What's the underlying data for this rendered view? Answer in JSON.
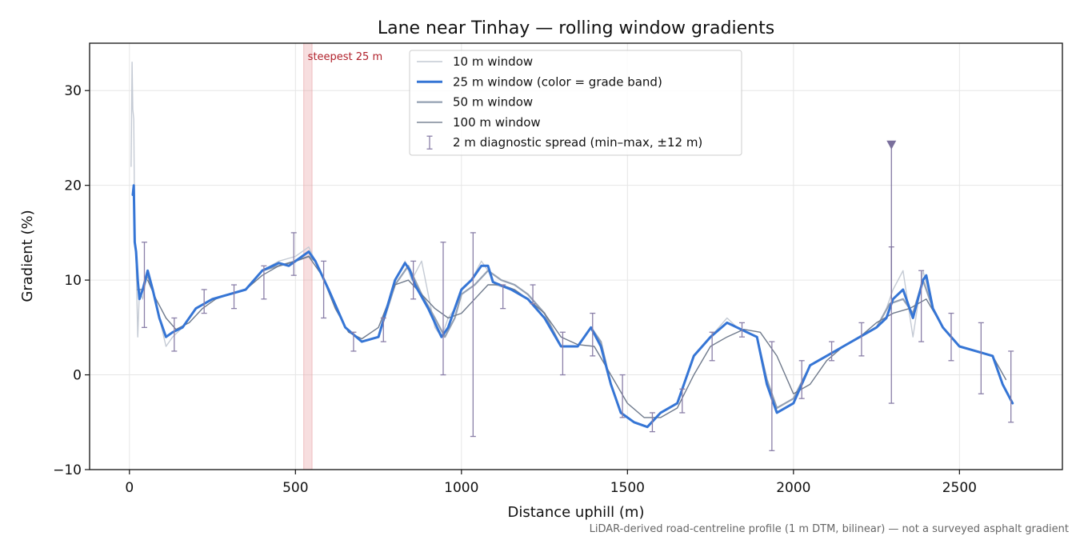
{
  "chart_data": {
    "type": "line",
    "title": "Lane near Tinhay — rolling window gradients",
    "xlabel": "Distance uphill (m)",
    "ylabel": "Gradient (%)",
    "xlim": [
      -120,
      2810
    ],
    "ylim": [
      -10,
      35
    ],
    "xticks": [
      0,
      500,
      1000,
      1500,
      2000,
      2500
    ],
    "yticks": [
      -10,
      0,
      10,
      20,
      30
    ],
    "xtick_labels": [
      "0",
      "500",
      "1000",
      "1500",
      "2000",
      "2500"
    ],
    "ytick_labels": [
      "−10",
      "0",
      "10",
      "20",
      "30"
    ],
    "grid": true,
    "legend_position": "top-center",
    "footnote": "LiDAR-derived road-centreline profile (1 m DTM, bilinear) — not a surveyed asphalt gradient",
    "highlight": {
      "label": "steepest 25 m",
      "x_range": [
        525,
        550
      ],
      "color": "#e8a0a4"
    },
    "series": [
      {
        "name": "10 m window",
        "color": "#c4cad4",
        "x": [
          5,
          8,
          10,
          13,
          16,
          20,
          25,
          30,
          40,
          55,
          70,
          90,
          110,
          130,
          160,
          200,
          250,
          300,
          350,
          400,
          450,
          500,
          520,
          540,
          560,
          600,
          650,
          700,
          750,
          800,
          830,
          850,
          880,
          920,
          940,
          960,
          980,
          1000,
          1030,
          1060,
          1080,
          1100,
          1150,
          1200,
          1250,
          1300,
          1350,
          1390,
          1420,
          1450,
          1480,
          1520,
          1560,
          1600,
          1650,
          1700,
          1750,
          1800,
          1830,
          1860,
          1890,
          1920,
          1950,
          2000,
          2050,
          2100,
          2150,
          2200,
          2250,
          2280,
          2300,
          2330,
          2360,
          2390,
          2420,
          2450,
          2500,
          2550,
          2600,
          2630,
          2660
        ],
        "y": [
          22,
          33,
          28,
          27,
          15,
          12,
          4,
          9,
          8,
          11,
          9,
          6,
          3,
          4,
          5,
          7,
          8,
          8.5,
          9,
          11,
          12,
          12.5,
          13,
          13.5,
          12,
          9,
          5,
          3.5,
          4,
          10,
          12,
          10,
          12,
          5,
          4,
          6,
          7,
          9,
          10,
          12,
          11,
          9.5,
          9,
          8,
          6,
          3,
          3,
          5,
          3,
          -1,
          -4,
          -5,
          -5.5,
          -4,
          -3,
          2,
          4,
          6,
          5,
          4.5,
          4,
          -1,
          -4,
          -3,
          1,
          2,
          3,
          4,
          5,
          7,
          9,
          11,
          4,
          11,
          7,
          5,
          3,
          2.5,
          2,
          -1,
          -3
        ]
      },
      {
        "name": "25 m window (color = grade band)",
        "color": "#3575d5",
        "x": [
          10,
          13,
          16,
          20,
          25,
          30,
          40,
          55,
          70,
          90,
          110,
          130,
          160,
          200,
          250,
          300,
          350,
          400,
          450,
          480,
          500,
          520,
          540,
          560,
          600,
          650,
          700,
          750,
          800,
          830,
          845,
          860,
          900,
          940,
          960,
          980,
          1000,
          1030,
          1060,
          1080,
          1095,
          1150,
          1200,
          1250,
          1300,
          1350,
          1390,
          1420,
          1450,
          1480,
          1520,
          1560,
          1600,
          1650,
          1700,
          1750,
          1800,
          1830,
          1860,
          1890,
          1920,
          1950,
          2000,
          2050,
          2100,
          2150,
          2200,
          2250,
          2280,
          2300,
          2330,
          2360,
          2390,
          2400,
          2420,
          2450,
          2500,
          2550,
          2600,
          2630,
          2660
        ],
        "y": [
          19,
          20,
          14,
          13,
          10,
          8,
          9,
          11,
          9,
          6,
          4,
          4.5,
          5,
          7,
          8,
          8.5,
          9,
          11,
          11.8,
          11.5,
          12,
          12.5,
          13,
          12,
          9,
          5,
          3.5,
          4,
          10,
          11.8,
          11,
          9.5,
          7,
          4,
          5,
          7,
          9,
          10,
          11.5,
          11.5,
          9.8,
          9,
          8,
          6,
          3,
          3,
          5,
          3,
          -1,
          -4,
          -5,
          -5.5,
          -4,
          -3,
          2,
          4,
          5.5,
          5,
          4.5,
          4,
          -1,
          -4,
          -3,
          1,
          2,
          3,
          4,
          5,
          6,
          8,
          9,
          6,
          10,
          10.5,
          7,
          5,
          3,
          2.5,
          2,
          -1,
          -3
        ]
      },
      {
        "name": "50 m window",
        "color": "#94a0b2",
        "x": [
          25,
          40,
          55,
          70,
          90,
          110,
          130,
          160,
          200,
          250,
          300,
          350,
          400,
          450,
          500,
          540,
          560,
          600,
          650,
          700,
          750,
          800,
          840,
          880,
          920,
          950,
          980,
          1000,
          1040,
          1080,
          1120,
          1160,
          1200,
          1250,
          1300,
          1350,
          1390,
          1420,
          1450,
          1480,
          1520,
          1560,
          1600,
          1650,
          1700,
          1750,
          1800,
          1830,
          1860,
          1890,
          1920,
          1950,
          2000,
          2050,
          2100,
          2150,
          2200,
          2250,
          2290,
          2330,
          2360,
          2390,
          2420,
          2450,
          2500,
          2550,
          2600,
          2630,
          2660
        ],
        "y": [
          9,
          9,
          10.5,
          9,
          6,
          4,
          4.5,
          5,
          7,
          8,
          8.5,
          9,
          11,
          11.5,
          12,
          12.5,
          12,
          9,
          5,
          3.5,
          4,
          9.5,
          11.5,
          8.5,
          6,
          4,
          6,
          8.5,
          9.5,
          11,
          10,
          9.5,
          8.5,
          6.5,
          3,
          3,
          5,
          3.5,
          -1,
          -4,
          -5,
          -5.5,
          -4,
          -3,
          2,
          4,
          5.5,
          5,
          4.5,
          4,
          -0.5,
          -3.5,
          -2.5,
          1,
          2,
          3,
          4,
          5,
          7.5,
          8,
          6.5,
          10,
          7,
          5,
          3,
          2.5,
          2,
          -1,
          -3
        ]
      },
      {
        "name": "100 m window",
        "color": "#6f7a8c",
        "x": [
          55,
          80,
          110,
          140,
          180,
          220,
          260,
          300,
          350,
          400,
          450,
          500,
          540,
          580,
          620,
          660,
          700,
          750,
          800,
          840,
          880,
          920,
          960,
          1000,
          1040,
          1080,
          1120,
          1160,
          1200,
          1250,
          1300,
          1350,
          1400,
          1450,
          1500,
          1550,
          1600,
          1650,
          1700,
          1750,
          1800,
          1850,
          1900,
          1950,
          2000,
          2050,
          2100,
          2150,
          2200,
          2250,
          2300,
          2350,
          2400,
          2450,
          2500,
          2550,
          2600,
          2640
        ],
        "y": [
          10,
          8,
          6,
          4.8,
          5.5,
          7,
          8,
          8.5,
          9,
          10.5,
          11.5,
          12,
          12.5,
          10.5,
          7,
          4.5,
          3.8,
          5,
          9.5,
          10,
          8.5,
          7,
          6,
          6.5,
          8,
          9.5,
          9.5,
          9,
          8,
          6.5,
          4,
          3.2,
          3,
          0,
          -3,
          -4.5,
          -4.5,
          -3.5,
          0,
          3,
          4,
          4.8,
          4.5,
          2,
          -2,
          -1,
          1.5,
          3,
          4,
          5.5,
          6.5,
          7,
          8,
          5,
          3,
          2.5,
          2,
          -0.5
        ]
      }
    ],
    "errorbars": {
      "name": "2 m diagnostic spread (min–max, ±12 m)",
      "color": "#8a7fa8",
      "points": [
        {
          "x": 45,
          "low": 5,
          "high": 14
        },
        {
          "x": 135,
          "low": 2.5,
          "high": 6
        },
        {
          "x": 225,
          "low": 6.5,
          "high": 9
        },
        {
          "x": 315,
          "low": 7,
          "high": 9.5
        },
        {
          "x": 405,
          "low": 8,
          "high": 11.5
        },
        {
          "x": 495,
          "low": 10.5,
          "high": 15
        },
        {
          "x": 585,
          "low": 6,
          "high": 12
        },
        {
          "x": 675,
          "low": 2.5,
          "high": 4.5
        },
        {
          "x": 765,
          "low": 3.5,
          "high": 6
        },
        {
          "x": 855,
          "low": 8,
          "high": 12
        },
        {
          "x": 945,
          "low": 0,
          "high": 14
        },
        {
          "x": 1035,
          "low": -6.5,
          "high": 15
        },
        {
          "x": 1125,
          "low": 7,
          "high": 9.5
        },
        {
          "x": 1215,
          "low": 7.5,
          "high": 9.5
        },
        {
          "x": 1305,
          "low": 0,
          "high": 4.5
        },
        {
          "x": 1395,
          "low": 2,
          "high": 6.5
        },
        {
          "x": 1485,
          "low": -4.5,
          "high": 0
        },
        {
          "x": 1575,
          "low": -6,
          "high": -4
        },
        {
          "x": 1665,
          "low": -4,
          "high": -1.5
        },
        {
          "x": 1755,
          "low": 1.5,
          "high": 4.5
        },
        {
          "x": 1845,
          "low": 4,
          "high": 5.5
        },
        {
          "x": 1935,
          "low": -8,
          "high": 3.5
        },
        {
          "x": 2025,
          "low": -2.5,
          "high": 1.5
        },
        {
          "x": 2115,
          "low": 1.5,
          "high": 3.5
        },
        {
          "x": 2205,
          "low": 2,
          "high": 5.5
        },
        {
          "x": 2295,
          "low": -3,
          "high": 13.5
        },
        {
          "x": 2385,
          "low": 3.5,
          "high": 11
        },
        {
          "x": 2475,
          "low": 1.5,
          "high": 6.5
        },
        {
          "x": 2565,
          "low": -2,
          "high": 5.5
        },
        {
          "x": 2655,
          "low": -5,
          "high": 2.5
        }
      ]
    },
    "outlier_marker": {
      "x": 2295,
      "y": 24.3,
      "color": "#7a6f9c"
    }
  }
}
